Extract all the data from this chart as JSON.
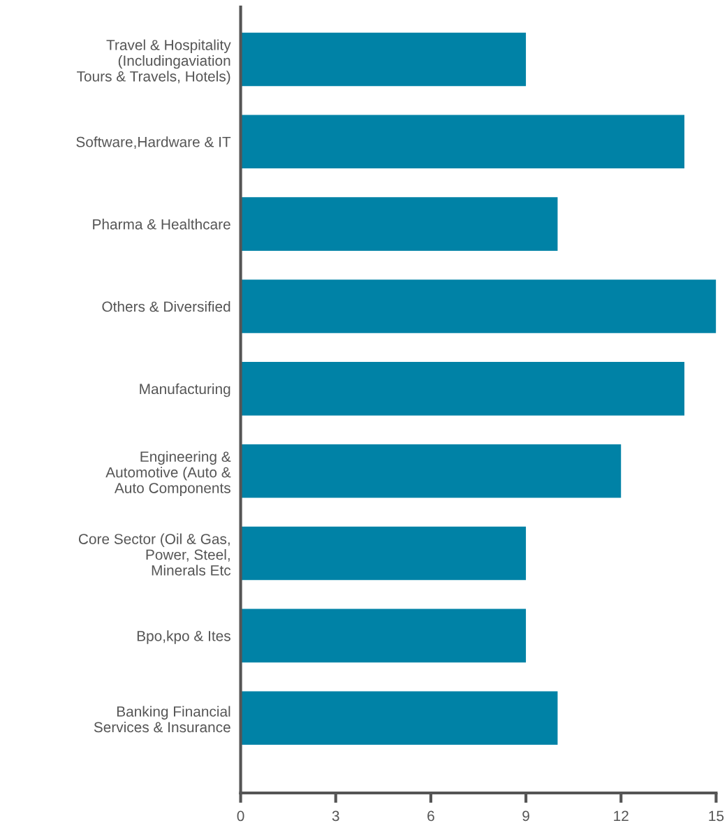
{
  "chart_data": {
    "type": "bar",
    "orientation": "horizontal",
    "categories": [
      "Travel & Hospitality\n(Includingaviation\nTours & Travels, Hotels)",
      "Software,Hardware & IT",
      "Pharma & Healthcare",
      "Others & Diversified",
      "Manufacturing",
      "Engineering &\nAutomotive (Auto &\nAuto Components",
      "Core Sector (Oil & Gas,\nPower, Steel,\nMinerals Etc",
      "Bpo,kpo & Ites",
      "Banking Financial\nServices & Insurance"
    ],
    "values": [
      9,
      14,
      10,
      15,
      14,
      12,
      9,
      9,
      10
    ],
    "color": "#0082a6",
    "xlim": [
      0,
      15
    ],
    "xticks": [
      0,
      3,
      6,
      9,
      12,
      15
    ],
    "grid": false
  }
}
